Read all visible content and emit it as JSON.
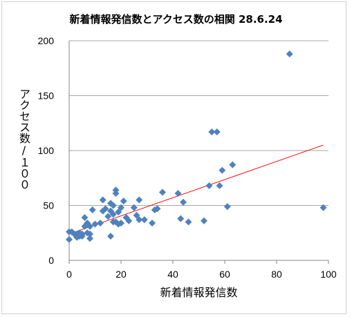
{
  "chart_data": {
    "type": "scatter",
    "title": "新着情報発信数とアクセス数の相関  28.6.24",
    "xlabel": "新着情報発信数",
    "ylabel": "アクセス数/１００",
    "xlim": [
      0,
      100
    ],
    "ylim": [
      0,
      200
    ],
    "x_ticks": [
      "0",
      "20",
      "40",
      "60",
      "80",
      "100"
    ],
    "y_ticks": [
      "0",
      "50",
      "100",
      "150",
      "200"
    ],
    "grid": "horizontal",
    "marker_color": "#4f81bd",
    "trendline_color": "#ff0000",
    "series": [
      {
        "points": [
          [
            0,
            26
          ],
          [
            0,
            19
          ],
          [
            1,
            26
          ],
          [
            2,
            24
          ],
          [
            3,
            24
          ],
          [
            3,
            21
          ],
          [
            4,
            22
          ],
          [
            4,
            25
          ],
          [
            5,
            22
          ],
          [
            5,
            24
          ],
          [
            6,
            31
          ],
          [
            6,
            39
          ],
          [
            7,
            25
          ],
          [
            7,
            34
          ],
          [
            8,
            20
          ],
          [
            8,
            24
          ],
          [
            8,
            31
          ],
          [
            9,
            46
          ],
          [
            10,
            33
          ],
          [
            12,
            34
          ],
          [
            13,
            45
          ],
          [
            13,
            55
          ],
          [
            14,
            47
          ],
          [
            15,
            40
          ],
          [
            16,
            22
          ],
          [
            16,
            45
          ],
          [
            16,
            52
          ],
          [
            17,
            35
          ],
          [
            17,
            42
          ],
          [
            17,
            50
          ],
          [
            18,
            35
          ],
          [
            18,
            61
          ],
          [
            18,
            64
          ],
          [
            19,
            33
          ],
          [
            19,
            44
          ],
          [
            20,
            34
          ],
          [
            20,
            48
          ],
          [
            21,
            54
          ],
          [
            22,
            39
          ],
          [
            23,
            36
          ],
          [
            25,
            48
          ],
          [
            26,
            41
          ],
          [
            27,
            37
          ],
          [
            27,
            55
          ],
          [
            29,
            37
          ],
          [
            32,
            34
          ],
          [
            33,
            46
          ],
          [
            34,
            47
          ],
          [
            36,
            62
          ],
          [
            42,
            61
          ],
          [
            43,
            38
          ],
          [
            44,
            53
          ],
          [
            46,
            35
          ],
          [
            52,
            36
          ],
          [
            54,
            68
          ],
          [
            55,
            117
          ],
          [
            57,
            117
          ],
          [
            58,
            68
          ],
          [
            59,
            82
          ],
          [
            61,
            49
          ],
          [
            63,
            87
          ],
          [
            85,
            188
          ],
          [
            98,
            48
          ]
        ]
      }
    ],
    "trendline": {
      "x": [
        0,
        98
      ],
      "y": [
        24,
        105
      ]
    }
  }
}
